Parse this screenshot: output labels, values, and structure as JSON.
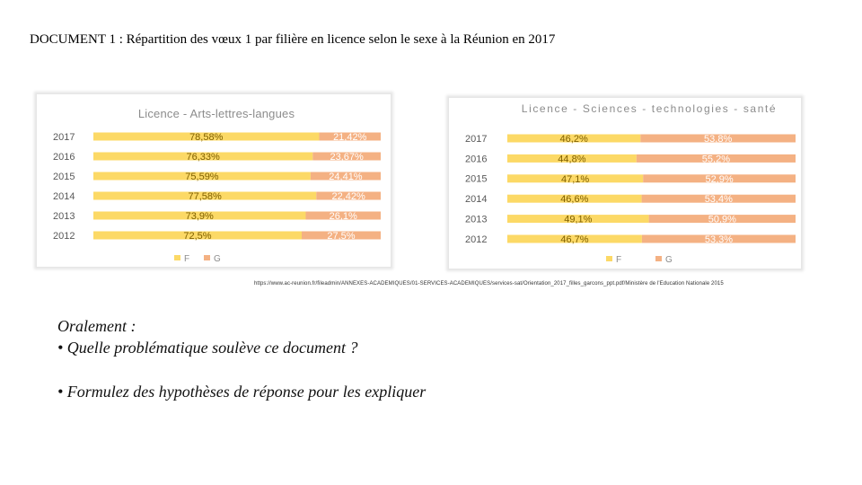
{
  "document": {
    "title": "DOCUMENT 1 : Répartition des vœux 1 par filière en licence selon le sexe à la Réunion en 2017",
    "source": "https://www.ac-reunion.fr/fileadmin/ANNEXES-ACADEMIQUES/01-SERVICES-ACADEMIQUES/services-sat/Orientation_2017_filles_garcons_ppt.pdf/Ministère de l'Education Nationale 2015"
  },
  "oral": {
    "heading": "Oralement :",
    "question1": "• Quelle problématique soulève ce document ?",
    "question2": "• Formulez des hypothèses de réponse pour les expliquer"
  },
  "colors": {
    "female": "#fcd966",
    "male": "#f4b183",
    "title_text": "#8c8c8c",
    "label_text": "#595959",
    "bar_text": "#7f6000"
  },
  "chart_data": [
    {
      "type": "bar",
      "orientation": "horizontal-stacked-100",
      "title": "Licence - Arts-lettres-langues",
      "categories": [
        "2017",
        "2016",
        "2015",
        "2014",
        "2013",
        "2012"
      ],
      "series": [
        {
          "name": "F",
          "values": [
            78.58,
            76.33,
            75.59,
            77.58,
            73.9,
            72.5
          ],
          "labels": [
            "78,58%",
            "76,33%",
            "75,59%",
            "77,58%",
            "73,9%",
            "72,5%"
          ]
        },
        {
          "name": "G",
          "values": [
            21.42,
            23.67,
            24.41,
            22.42,
            26.1,
            27.5
          ],
          "labels": [
            "21,42%",
            "23,67%",
            "24,41%",
            "22,42%",
            "26,1%",
            "27,5%"
          ]
        }
      ],
      "xlim": [
        0,
        100
      ],
      "legend": "bottom-center"
    },
    {
      "type": "bar",
      "orientation": "horizontal-stacked-100",
      "title": "Licence - Sciences - technologies - santé",
      "categories": [
        "2017",
        "2016",
        "2015",
        "2014",
        "2013",
        "2012"
      ],
      "series": [
        {
          "name": "F",
          "values": [
            46.2,
            44.8,
            47.1,
            46.6,
            49.1,
            46.7
          ],
          "labels": [
            "46,2%",
            "44,8%",
            "47,1%",
            "46,6%",
            "49,1%",
            "46,7%"
          ]
        },
        {
          "name": "G",
          "values": [
            53.8,
            55.2,
            52.9,
            53.4,
            50.9,
            53.3
          ],
          "labels": [
            "53,8%",
            "55,2%",
            "52,9%",
            "53,4%",
            "50,9%",
            "53,3%"
          ]
        }
      ],
      "xlim": [
        0,
        100
      ],
      "legend": "bottom-center"
    }
  ]
}
